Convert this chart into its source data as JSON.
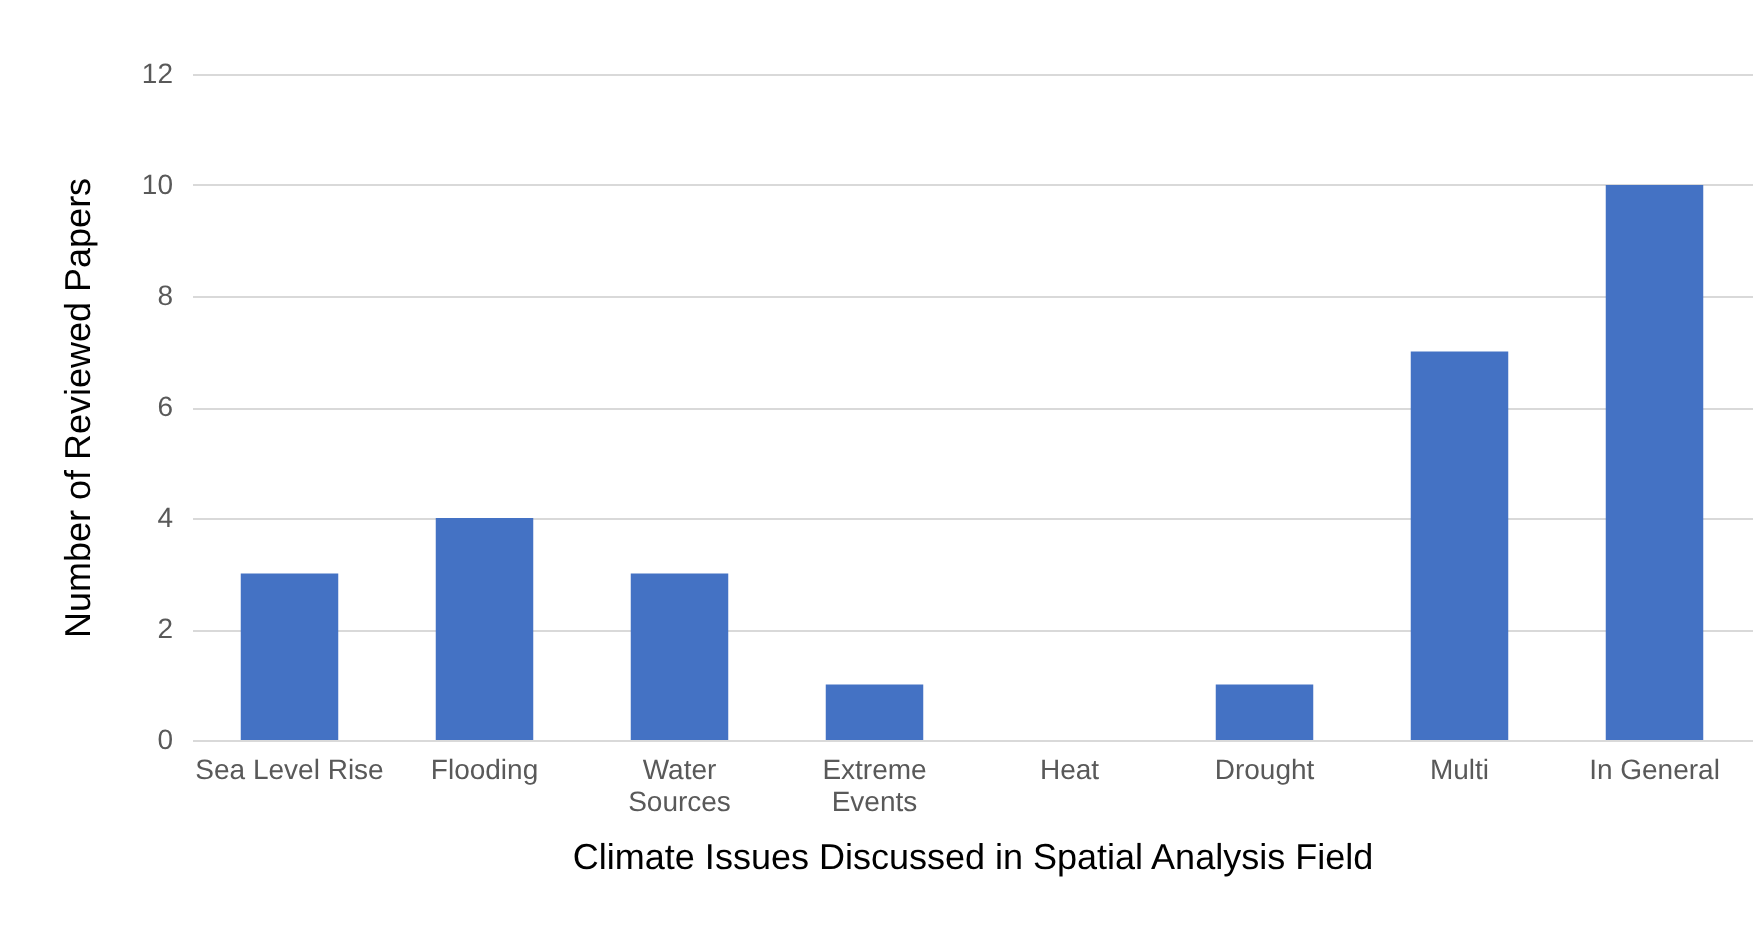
{
  "chart_data": {
    "type": "bar",
    "xlabel": "Climate Issues Discussed in Spatial Analysis Field",
    "ylabel": "Number of Reviewed Papers",
    "categories": [
      "Sea Level Rise",
      "Flooding",
      "Water Sources",
      "Extreme Events",
      "Heat",
      "Drought",
      "Multi",
      "In General"
    ],
    "values": [
      3,
      4,
      3,
      1,
      0,
      1,
      7,
      10
    ],
    "color": "#4472c4",
    "ylim": [
      0,
      12
    ],
    "yticks": [
      0,
      2,
      4,
      6,
      8,
      10,
      12
    ],
    "grid": "y"
  }
}
